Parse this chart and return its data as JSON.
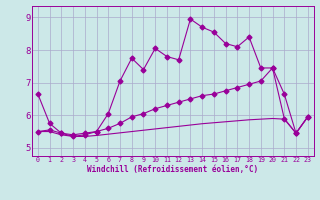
{
  "background_color": "#cce8e8",
  "grid_color": "#aaaacc",
  "line_color": "#990099",
  "xlabel": "Windchill (Refroidissement éolien,°C)",
  "xlim": [
    -0.5,
    23.5
  ],
  "ylim": [
    4.75,
    9.35
  ],
  "yticks": [
    5,
    6,
    7,
    8,
    9
  ],
  "xticks": [
    0,
    1,
    2,
    3,
    4,
    5,
    6,
    7,
    8,
    9,
    10,
    11,
    12,
    13,
    14,
    15,
    16,
    17,
    18,
    19,
    20,
    21,
    22,
    23
  ],
  "series1_x": [
    0,
    1,
    2,
    3,
    4,
    5,
    6,
    7,
    8,
    9,
    10,
    11,
    12,
    13,
    14,
    15,
    16,
    17,
    18,
    19,
    20,
    21,
    22,
    23
  ],
  "series1_y": [
    6.65,
    5.75,
    5.45,
    5.35,
    5.4,
    5.5,
    6.05,
    7.05,
    7.75,
    7.4,
    8.05,
    7.8,
    7.7,
    8.95,
    8.7,
    8.55,
    8.2,
    8.1,
    8.4,
    7.45,
    7.45,
    6.65,
    5.45,
    5.95
  ],
  "series2_x": [
    0,
    1,
    2,
    3,
    4,
    5,
    6,
    7,
    8,
    9,
    10,
    11,
    12,
    13,
    14,
    15,
    16,
    17,
    18,
    19,
    20,
    21,
    22,
    23
  ],
  "series2_y": [
    5.5,
    5.55,
    5.45,
    5.4,
    5.45,
    5.5,
    5.6,
    5.75,
    5.95,
    6.05,
    6.2,
    6.3,
    6.4,
    6.5,
    6.6,
    6.65,
    6.75,
    6.85,
    6.95,
    7.05,
    7.45,
    5.9,
    5.45,
    5.95
  ],
  "series3_x": [
    0,
    1,
    2,
    3,
    4,
    5,
    6,
    7,
    8,
    9,
    10,
    11,
    12,
    13,
    14,
    15,
    16,
    17,
    18,
    19,
    20,
    21,
    22,
    23
  ],
  "series3_y": [
    5.5,
    5.5,
    5.4,
    5.35,
    5.35,
    5.38,
    5.42,
    5.46,
    5.5,
    5.54,
    5.58,
    5.62,
    5.66,
    5.7,
    5.74,
    5.77,
    5.8,
    5.83,
    5.86,
    5.88,
    5.9,
    5.88,
    5.45,
    5.95
  ]
}
